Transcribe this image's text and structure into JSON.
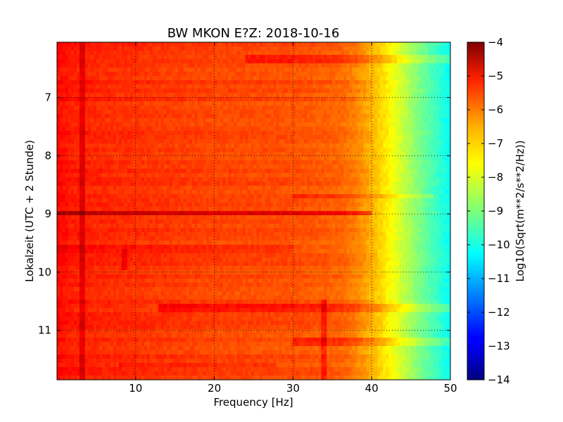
{
  "chart_data": {
    "type": "heatmap",
    "title": "BW MKON E?Z: 2018-10-16",
    "xlabel": "Frequency [Hz]",
    "ylabel": "Lokalzeit (UTC + 2 Stunde)",
    "xlim": [
      0,
      50
    ],
    "ylim": [
      11.85,
      6.05
    ],
    "x_ticks": [
      10,
      20,
      30,
      40,
      50
    ],
    "x_tick_labels": [
      "10",
      "20",
      "30",
      "40",
      "50"
    ],
    "y_ticks": [
      7,
      8,
      9,
      10,
      11
    ],
    "y_tick_labels": [
      "7",
      "8",
      "9",
      "10",
      "11"
    ],
    "grid": true,
    "colormap": "jet",
    "colorbar": {
      "label": "Log10(Sqrt(m**2/s**2/Hz))",
      "range": [
        -14,
        -4
      ],
      "ticks": [
        -4,
        -5,
        -6,
        -7,
        -8,
        -9,
        -10,
        -11,
        -12,
        -13,
        -14
      ],
      "tick_labels": [
        "−4",
        "−5",
        "−6",
        "−7",
        "−8",
        "−9",
        "−10",
        "−11",
        "−12",
        "−13",
        "−14"
      ]
    },
    "spectrum_profile": {
      "frequency_hz": [
        0,
        2,
        5,
        10,
        20,
        30,
        36,
        38,
        40,
        42,
        44,
        46,
        48,
        50
      ],
      "level": [
        -5.3,
        -5.5,
        -5.6,
        -5.7,
        -5.9,
        -6.0,
        -6.2,
        -6.5,
        -7.0,
        -7.6,
        -8.3,
        -9.0,
        -9.6,
        -10.2
      ]
    },
    "horizontal_features": [
      {
        "time": 8.98,
        "f_start": 0,
        "f_end": 40,
        "delta": 0.9
      },
      {
        "time": 10.6,
        "f_start": 13,
        "f_end": 50,
        "delta": 0.6
      },
      {
        "time": 6.32,
        "f_start": 24,
        "f_end": 50,
        "delta": 0.5
      },
      {
        "time": 8.7,
        "f_start": 30,
        "f_end": 48,
        "delta": 0.4
      },
      {
        "time": 11.2,
        "f_start": 30,
        "f_end": 50,
        "delta": 0.5
      },
      {
        "time": 11.6,
        "f_start": 8,
        "f_end": 28,
        "delta": 0.3
      },
      {
        "time": 9.6,
        "f_start": 0,
        "f_end": 30,
        "delta": 0.3
      }
    ],
    "vertical_features": [
      {
        "freq": 3.3,
        "t_start": 6.05,
        "t_end": 11.85,
        "delta": 0.6
      },
      {
        "freq": 33.8,
        "t_start": 10.5,
        "t_end": 11.85,
        "delta": 0.6
      },
      {
        "freq": 8.5,
        "t_start": 9.6,
        "t_end": 10.0,
        "delta": 0.5
      }
    ]
  }
}
